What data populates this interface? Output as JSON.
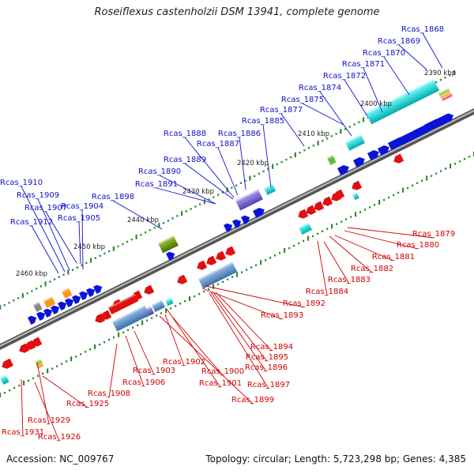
{
  "title": "Roseiflexus castenholzii DSM 13941, complete genome",
  "accession": "Accession: NC_009767",
  "summary": "Topology: circular; Length: 5,723,298 bp; Genes: 4,385",
  "kbp_ticks": [
    "2390 kbp",
    "2400 kbp",
    "2410 kbp",
    "2420 kbp",
    "2430 kbp",
    "2440 kbp",
    "2450 kbp",
    "2460 kbp"
  ],
  "top_labels": [
    "Rcas_1868",
    "Rcas_1869",
    "Rcas_1870",
    "Rcas_1871",
    "Rcas_1872",
    "Rcas_1874",
    "Rcas_1875",
    "Rcas_1877",
    "Rcas_1885",
    "Rcas_1886",
    "Rcas_1887",
    "Rcas_1888",
    "Rcas_1889",
    "Rcas_1890",
    "Rcas_1891",
    "Rcas_1898",
    "Rcas_1904",
    "Rcas_1905",
    "Rcas_1907",
    "Rcas_1909",
    "Rcas_1910",
    "Rcas_1912"
  ],
  "bottom_labels": [
    "Rcas_1879",
    "Rcas_1880",
    "Rcas_1881",
    "Rcas_1882",
    "Rcas_1883",
    "Rcas_1884",
    "Rcas_1892",
    "Rcas_1893",
    "Rcas_1894",
    "Rcas_1895",
    "Rcas_1896",
    "Rcas_1897",
    "Rcas_1899",
    "Rcas_1900",
    "Rcas_1901",
    "Rcas_1902",
    "Rcas_1903",
    "Rcas_1906",
    "Rcas_1908",
    "Rcas_1925",
    "Rcas_1929",
    "Rcas_1926",
    "Rcas_1931"
  ],
  "colors": {
    "forward": "#0a14d8",
    "reverse": "#e01010",
    "top_label": "#1010c8",
    "bottom_label": "#d00000",
    "backbone": "#7a7a7a",
    "dots": "#2f8a2f"
  }
}
